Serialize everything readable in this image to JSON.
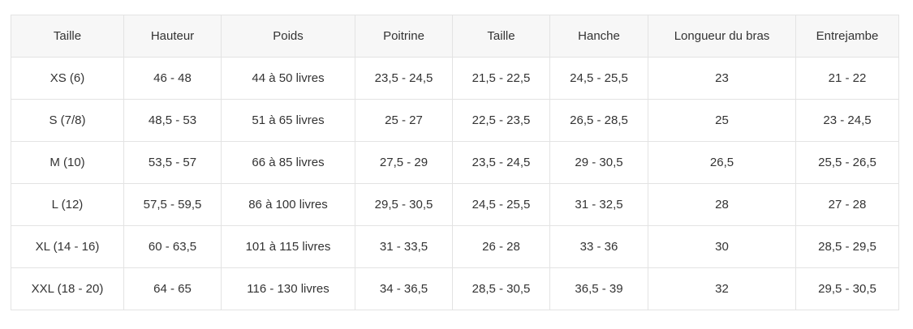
{
  "table": {
    "header": [
      "Taille",
      "Hauteur",
      "Poids",
      "Poitrine",
      "Taille",
      "Hanche",
      "Longueur du bras",
      "Entrejambe"
    ],
    "rows": [
      [
        "XS (6)",
        "46 - 48",
        "44 à 50 livres",
        "23,5 - 24,5",
        "21,5 - 22,5",
        "24,5 - 25,5",
        "23",
        "21 - 22"
      ],
      [
        "S (7/8)",
        "48,5 - 53",
        "51 à 65 livres",
        "25 - 27",
        "22,5 - 23,5",
        "26,5 - 28,5",
        "25",
        "23 - 24,5"
      ],
      [
        "M (10)",
        "53,5 - 57",
        "66 à 85 livres",
        "27,5 - 29",
        "23,5 - 24,5",
        "29 - 30,5",
        "26,5",
        "25,5 - 26,5"
      ],
      [
        "L (12)",
        "57,5 - 59,5",
        "86 à 100 livres",
        "29,5 - 30,5",
        "24,5 - 25,5",
        "31 - 32,5",
        "28",
        "27 - 28"
      ],
      [
        "XL (14 - 16)",
        "60 - 63,5",
        "101 à 115 livres",
        "31 - 33,5",
        "26 - 28",
        "33 - 36",
        "30",
        "28,5 - 29,5"
      ],
      [
        "XXL (18 - 20)",
        "64 - 65",
        "116 - 130 livres",
        "34 - 36,5",
        "28,5 - 30,5",
        "36,5 - 39",
        "32",
        "29,5 - 30,5"
      ]
    ]
  }
}
